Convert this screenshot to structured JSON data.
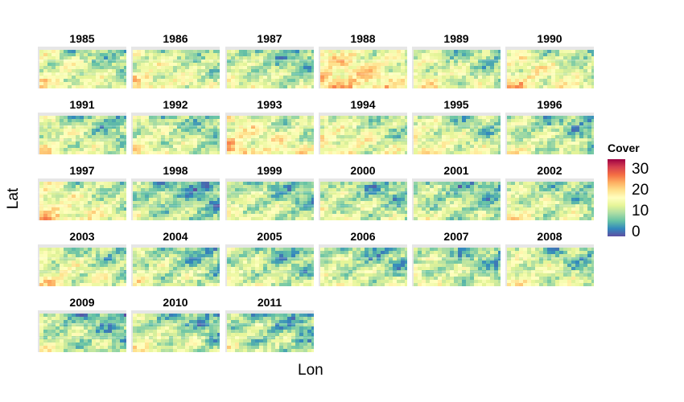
{
  "chart_data": {
    "type": "heatmap",
    "xlabel": "Lon",
    "ylabel": "Lat",
    "legend": {
      "title": "Cover",
      "position": "right",
      "range": [
        -2,
        35
      ],
      "ticks": [
        0,
        10,
        20,
        30
      ]
    },
    "panels": [
      {
        "year": "1985",
        "mean_cover": 12
      },
      {
        "year": "1986",
        "mean_cover": 13
      },
      {
        "year": "1987",
        "mean_cover": 10
      },
      {
        "year": "1988",
        "mean_cover": 17
      },
      {
        "year": "1989",
        "mean_cover": 12
      },
      {
        "year": "1990",
        "mean_cover": 14
      },
      {
        "year": "1991",
        "mean_cover": 11
      },
      {
        "year": "1992",
        "mean_cover": 11
      },
      {
        "year": "1993",
        "mean_cover": 15
      },
      {
        "year": "1994",
        "mean_cover": 13
      },
      {
        "year": "1995",
        "mean_cover": 12
      },
      {
        "year": "1996",
        "mean_cover": 10
      },
      {
        "year": "1997",
        "mean_cover": 14
      },
      {
        "year": "1998",
        "mean_cover": 8
      },
      {
        "year": "1999",
        "mean_cover": 10
      },
      {
        "year": "2000",
        "mean_cover": 10
      },
      {
        "year": "2001",
        "mean_cover": 9
      },
      {
        "year": "2002",
        "mean_cover": 11
      },
      {
        "year": "2003",
        "mean_cover": 12
      },
      {
        "year": "2004",
        "mean_cover": 10
      },
      {
        "year": "2005",
        "mean_cover": 10
      },
      {
        "year": "2006",
        "mean_cover": 10
      },
      {
        "year": "2007",
        "mean_cover": 10
      },
      {
        "year": "2008",
        "mean_cover": 11
      },
      {
        "year": "2009",
        "mean_cover": 9
      },
      {
        "year": "2010",
        "mean_cover": 10
      },
      {
        "year": "2011",
        "mean_cover": 9
      }
    ]
  }
}
